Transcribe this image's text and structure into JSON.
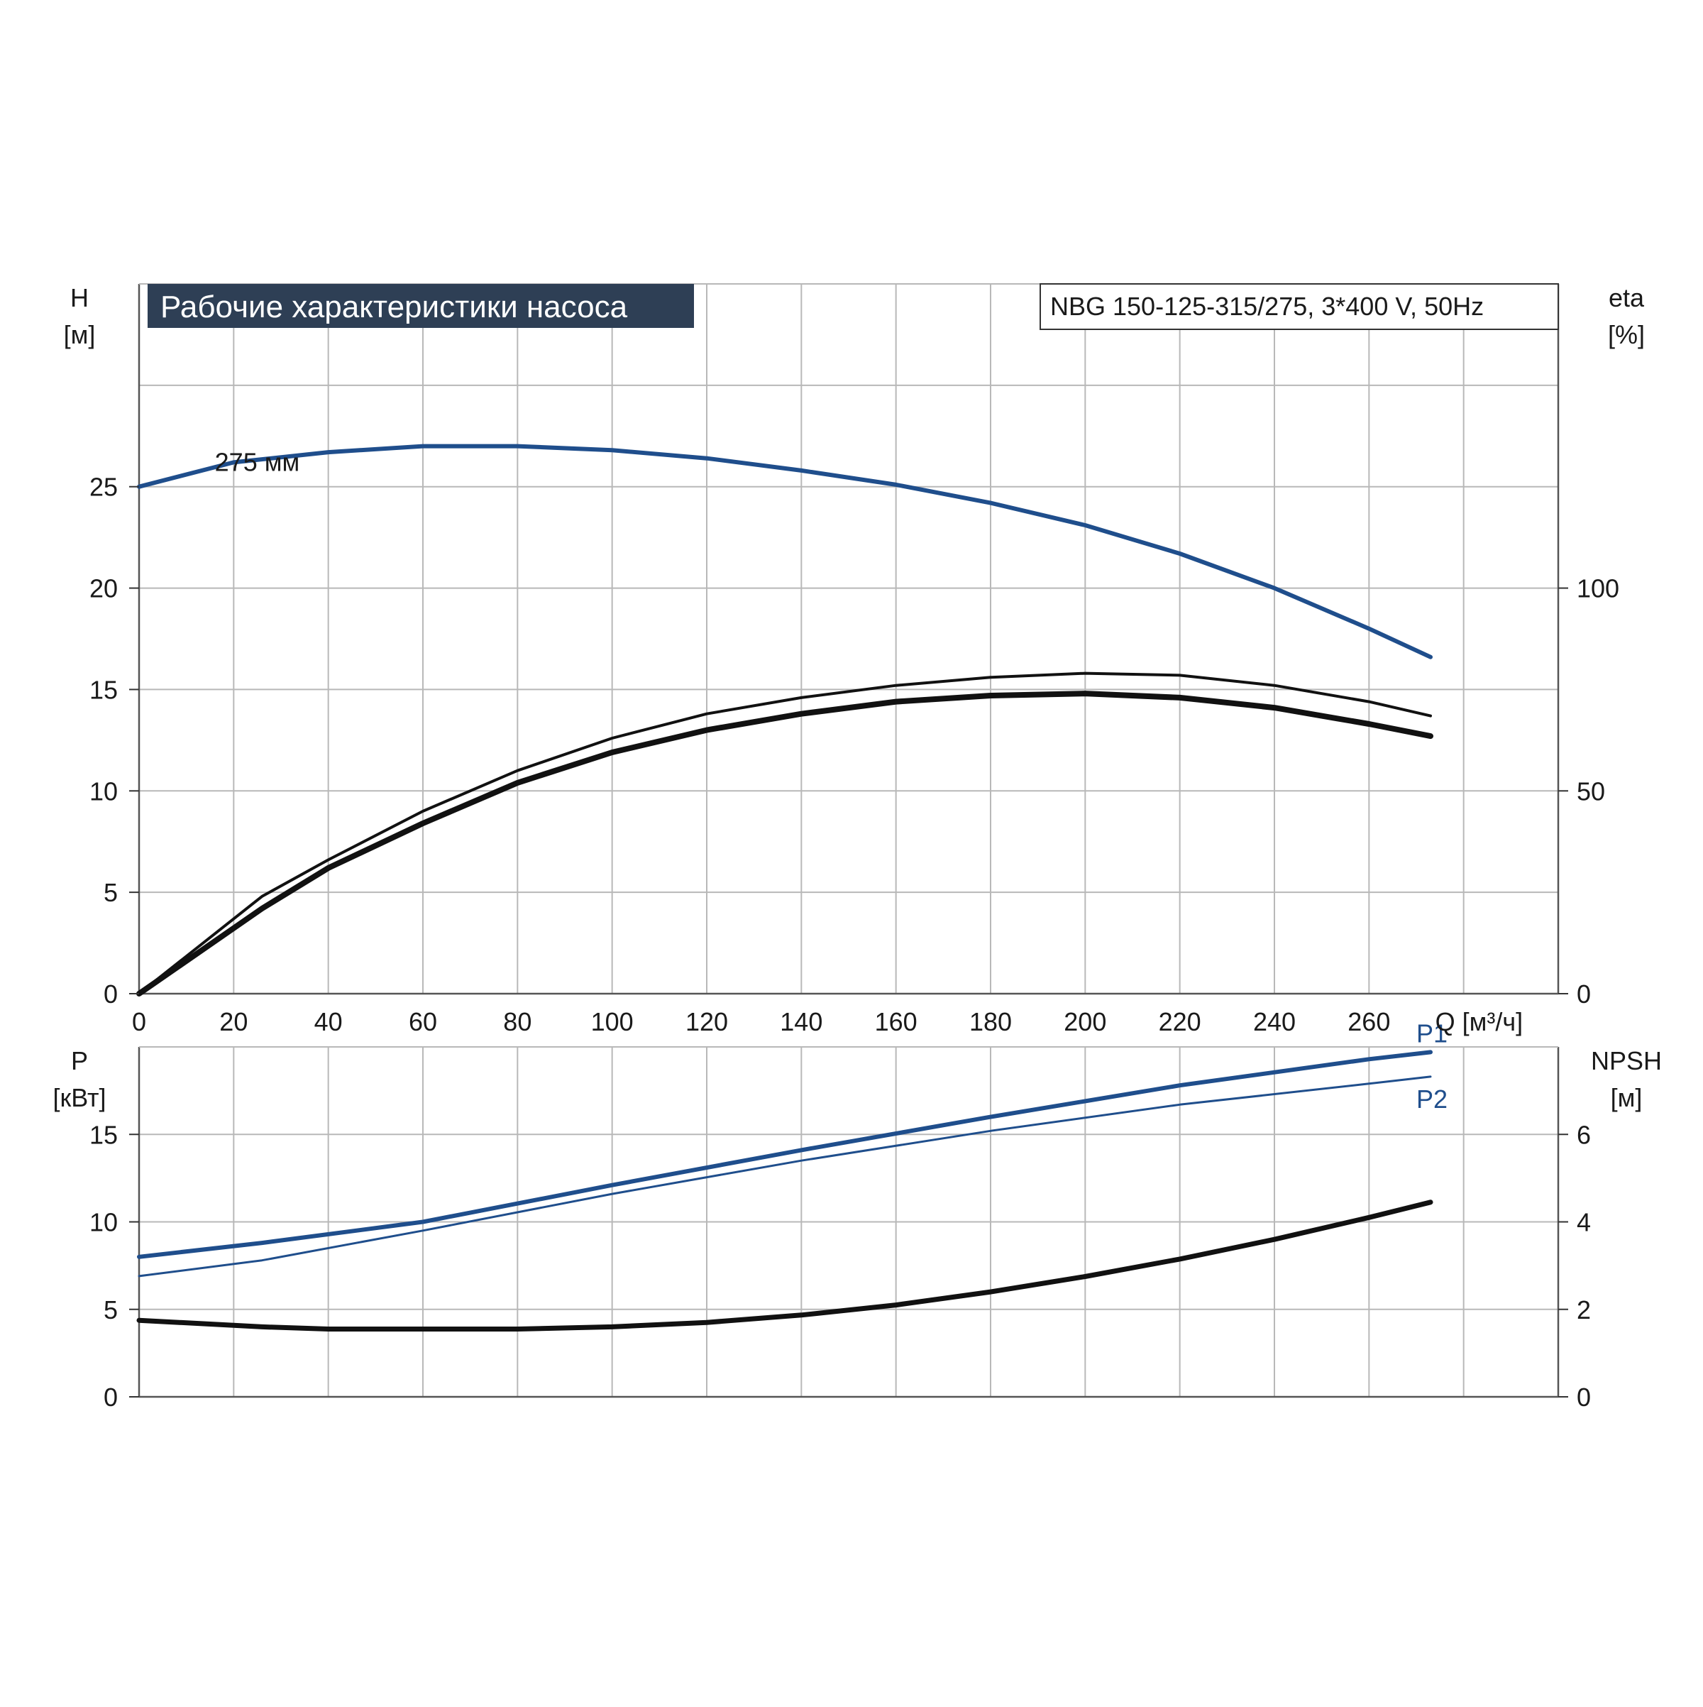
{
  "title": "Рабочие характеристики насоса",
  "model": "NBG 150-125-315/275, 3*400 V, 50Hz",
  "colors": {
    "blue": "#1f4e8c",
    "black": "#111111",
    "title_bg": "#2e3f55",
    "title_text": "#ffffff",
    "grid": "#b8b8b8"
  },
  "chart_data": [
    {
      "type": "line",
      "name": "top",
      "x_ticks": [
        "0",
        "20",
        "40",
        "60",
        "80",
        "100",
        "120",
        "140",
        "160",
        "180",
        "200",
        "220",
        "240",
        "260"
      ],
      "x_unit_label": "Q [м³/ч]",
      "y_left_label": [
        "H",
        "[м]"
      ],
      "y_left_ticks": [
        "0",
        "5",
        "10",
        "15",
        "20",
        "25"
      ],
      "y_left_lim": [
        0,
        35
      ],
      "y_right_label": [
        "eta",
        "[%]"
      ],
      "y_right_ticks": [
        "0",
        "50",
        "100"
      ],
      "y_right_lim": [
        0,
        175
      ],
      "xlim": [
        0,
        300
      ],
      "grid": true,
      "series": [
        {
          "name": "275 мм",
          "axis": "left",
          "color": "blue",
          "width": 6,
          "x": [
            0,
            20,
            40,
            60,
            80,
            100,
            120,
            140,
            160,
            180,
            200,
            220,
            240,
            260,
            273
          ],
          "y": [
            25.0,
            26.2,
            26.7,
            27.0,
            27.0,
            26.8,
            26.4,
            25.8,
            25.1,
            24.2,
            23.1,
            21.7,
            20.0,
            18.0,
            16.6
          ]
        },
        {
          "axis": "right",
          "color": "black",
          "width": 4,
          "x": [
            0,
            26,
            40,
            60,
            80,
            100,
            120,
            140,
            160,
            180,
            200,
            220,
            240,
            260,
            273
          ],
          "y": [
            0,
            24,
            33,
            45,
            55,
            63,
            69,
            73,
            76,
            78,
            79,
            78.5,
            76,
            72,
            68.5
          ]
        },
        {
          "axis": "right",
          "color": "black",
          "width": 8,
          "x": [
            0,
            26,
            40,
            60,
            80,
            100,
            120,
            140,
            160,
            180,
            200,
            220,
            240,
            260,
            273
          ],
          "y": [
            0,
            21,
            31,
            42,
            52,
            59.5,
            65,
            69,
            72,
            73.5,
            74,
            73,
            70.5,
            66.5,
            63.5
          ]
        }
      ]
    },
    {
      "type": "line",
      "name": "bottom",
      "y_left_label": [
        "P",
        "[кВт]"
      ],
      "y_left_ticks": [
        "0",
        "5",
        "10",
        "15"
      ],
      "y_left_lim": [
        0,
        20
      ],
      "y_right_label": [
        "NPSH",
        "[м]"
      ],
      "y_right_ticks": [
        "0",
        "2",
        "4",
        "6"
      ],
      "y_right_lim": [
        0,
        8
      ],
      "xlim": [
        0,
        300
      ],
      "grid": true,
      "series": [
        {
          "name": "P1",
          "axis": "left",
          "color": "blue",
          "width": 6,
          "x": [
            0,
            26,
            60,
            100,
            140,
            180,
            220,
            260,
            273
          ],
          "y": [
            8.0,
            8.8,
            10.0,
            12.1,
            14.1,
            16.0,
            17.8,
            19.3,
            19.7
          ]
        },
        {
          "name": "P2",
          "axis": "left",
          "color": "blue",
          "width": 3,
          "x": [
            0,
            26,
            60,
            100,
            140,
            180,
            220,
            260,
            273
          ],
          "y": [
            6.9,
            7.8,
            9.5,
            11.6,
            13.5,
            15.2,
            16.7,
            17.9,
            18.3
          ]
        },
        {
          "axis": "right",
          "color": "black",
          "width": 7,
          "x": [
            0,
            26,
            40,
            60,
            80,
            100,
            120,
            140,
            160,
            180,
            200,
            220,
            240,
            260,
            273
          ],
          "y": [
            1.75,
            1.6,
            1.55,
            1.55,
            1.55,
            1.6,
            1.7,
            1.87,
            2.1,
            2.4,
            2.75,
            3.15,
            3.6,
            4.1,
            4.45
          ]
        }
      ]
    }
  ]
}
